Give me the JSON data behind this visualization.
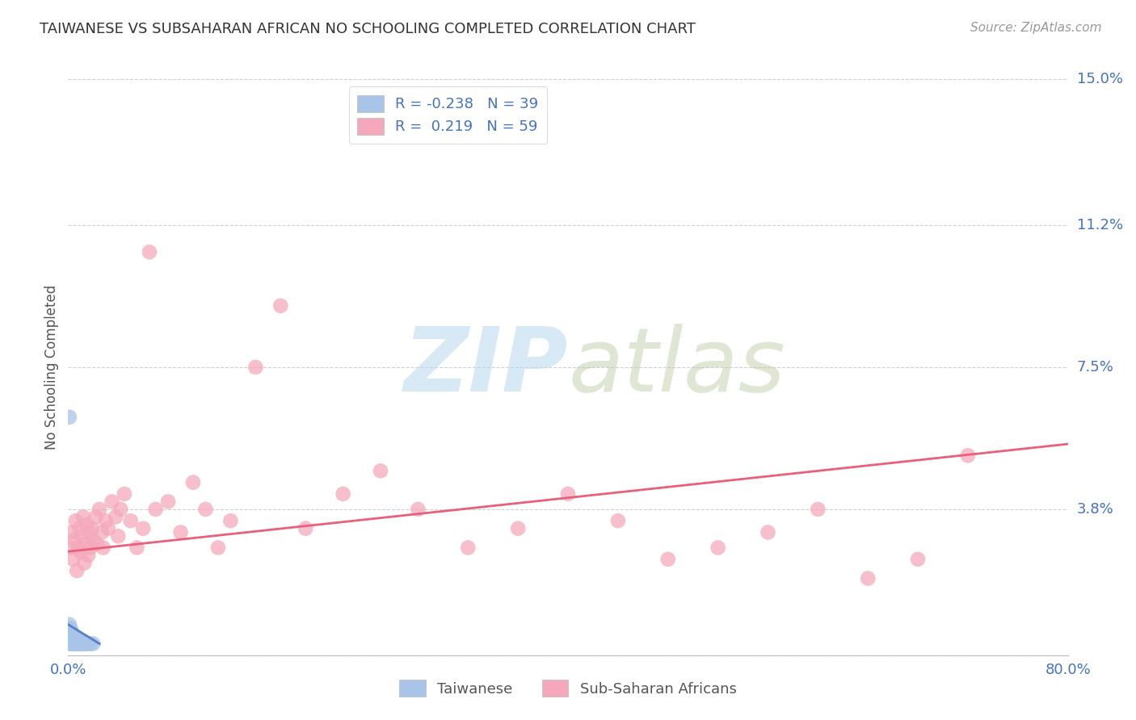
{
  "title": "TAIWANESE VS SUBSAHARAN AFRICAN NO SCHOOLING COMPLETED CORRELATION CHART",
  "source": "Source: ZipAtlas.com",
  "ylabel": "No Schooling Completed",
  "xlim": [
    0.0,
    0.8
  ],
  "ylim": [
    0.0,
    0.15
  ],
  "yticks": [
    0.0,
    0.038,
    0.075,
    0.112,
    0.15
  ],
  "ytick_labels": [
    "",
    "3.8%",
    "7.5%",
    "11.2%",
    "15.0%"
  ],
  "xticks": [
    0.0,
    0.16,
    0.32,
    0.48,
    0.64,
    0.8
  ],
  "xtick_labels": [
    "0.0%",
    "",
    "",
    "",
    "",
    "80.0%"
  ],
  "grid_color": "#d0d0d0",
  "bg_color": "#ffffff",
  "taiwanese_color": "#a8c4e8",
  "subsaharan_color": "#f5a8bc",
  "taiwanese_line_color": "#5580c8",
  "subsaharan_line_color": "#e8607a",
  "legend_R_taiwanese": "-0.238",
  "legend_N_taiwanese": "39",
  "legend_R_subsaharan": "0.219",
  "legend_N_subsaharan": "59",
  "taiwanese_x": [
    0.001,
    0.001,
    0.001,
    0.001,
    0.001,
    0.001,
    0.002,
    0.002,
    0.002,
    0.002,
    0.002,
    0.003,
    0.003,
    0.003,
    0.003,
    0.004,
    0.004,
    0.004,
    0.005,
    0.005,
    0.005,
    0.006,
    0.006,
    0.007,
    0.007,
    0.008,
    0.008,
    0.009,
    0.01,
    0.01,
    0.011,
    0.012,
    0.013,
    0.014,
    0.015,
    0.016,
    0.018,
    0.02,
    0.001
  ],
  "taiwanese_y": [
    0.003,
    0.004,
    0.005,
    0.006,
    0.007,
    0.008,
    0.003,
    0.004,
    0.005,
    0.006,
    0.007,
    0.003,
    0.004,
    0.005,
    0.006,
    0.003,
    0.004,
    0.005,
    0.003,
    0.004,
    0.005,
    0.003,
    0.004,
    0.003,
    0.004,
    0.003,
    0.004,
    0.003,
    0.003,
    0.004,
    0.003,
    0.003,
    0.003,
    0.003,
    0.003,
    0.003,
    0.003,
    0.003,
    0.062
  ],
  "subsaharan_x": [
    0.002,
    0.003,
    0.004,
    0.005,
    0.006,
    0.007,
    0.008,
    0.009,
    0.01,
    0.011,
    0.012,
    0.013,
    0.014,
    0.015,
    0.016,
    0.017,
    0.018,
    0.019,
    0.02,
    0.022,
    0.023,
    0.025,
    0.027,
    0.028,
    0.03,
    0.032,
    0.035,
    0.038,
    0.04,
    0.042,
    0.045,
    0.05,
    0.055,
    0.06,
    0.065,
    0.07,
    0.08,
    0.09,
    0.1,
    0.11,
    0.12,
    0.13,
    0.15,
    0.17,
    0.19,
    0.22,
    0.25,
    0.28,
    0.32,
    0.36,
    0.4,
    0.44,
    0.48,
    0.52,
    0.56,
    0.6,
    0.64,
    0.68,
    0.72
  ],
  "subsaharan_y": [
    0.028,
    0.032,
    0.025,
    0.03,
    0.035,
    0.022,
    0.028,
    0.033,
    0.027,
    0.031,
    0.036,
    0.024,
    0.029,
    0.034,
    0.026,
    0.032,
    0.028,
    0.033,
    0.03,
    0.036,
    0.029,
    0.038,
    0.032,
    0.028,
    0.035,
    0.033,
    0.04,
    0.036,
    0.031,
    0.038,
    0.042,
    0.035,
    0.028,
    0.033,
    0.105,
    0.038,
    0.04,
    0.032,
    0.045,
    0.038,
    0.028,
    0.035,
    0.075,
    0.091,
    0.033,
    0.042,
    0.048,
    0.038,
    0.028,
    0.033,
    0.042,
    0.035,
    0.025,
    0.028,
    0.032,
    0.038,
    0.02,
    0.025,
    0.052
  ],
  "tw_line_x": [
    0.0,
    0.025
  ],
  "tw_line_y": [
    0.008,
    0.003
  ],
  "ss_line_x": [
    0.0,
    0.8
  ],
  "ss_line_y": [
    0.027,
    0.055
  ]
}
